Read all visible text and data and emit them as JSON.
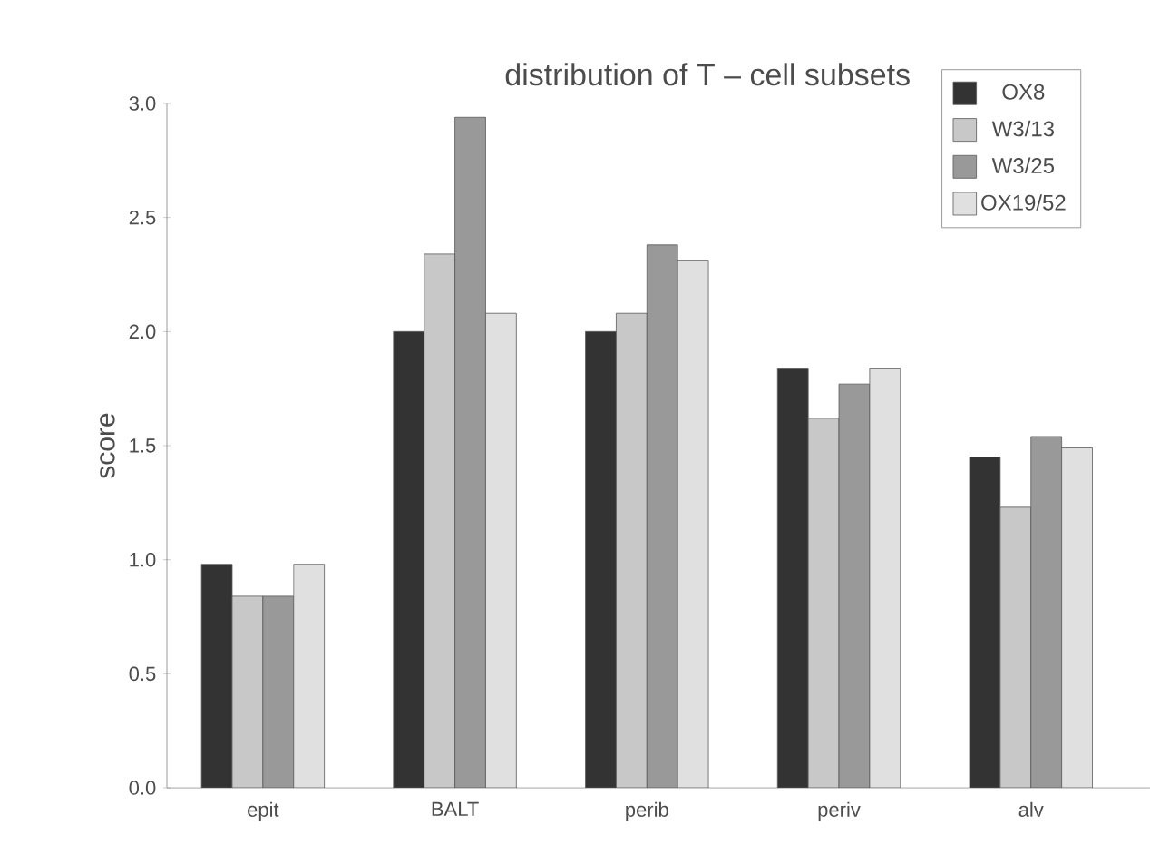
{
  "chart_data": {
    "type": "bar",
    "title": "distribution of T – cell subsets",
    "ylabel": "score",
    "categories": [
      "epit",
      "BALT",
      "perib",
      "periv",
      "alv"
    ],
    "series": [
      {
        "name": "OX8",
        "color": "#333333",
        "values": [
          0.98,
          2.0,
          2.0,
          1.84,
          1.45
        ]
      },
      {
        "name": "W3/13",
        "color": "#c8c8c8",
        "values": [
          0.84,
          2.34,
          2.08,
          1.62,
          1.23
        ]
      },
      {
        "name": "W3/25",
        "color": "#999999",
        "values": [
          0.84,
          2.94,
          2.38,
          1.77,
          1.54
        ]
      },
      {
        "name": "OX19/52",
        "color": "#e0e0e0",
        "values": [
          0.98,
          2.08,
          2.31,
          1.84,
          1.49
        ]
      }
    ],
    "ylim": [
      0,
      3
    ],
    "yticks": [
      {
        "value": 0,
        "label": "0.0"
      },
      {
        "value": 0.5,
        "label": "0.5"
      },
      {
        "value": 1,
        "label": "1.0"
      },
      {
        "value": 1.5,
        "label": "1.5"
      },
      {
        "value": 2,
        "label": "2.0"
      },
      {
        "value": 2.5,
        "label": "2.5"
      },
      {
        "value": 3,
        "label": "3.0"
      }
    ],
    "legend": "top right",
    "grid": false
  }
}
